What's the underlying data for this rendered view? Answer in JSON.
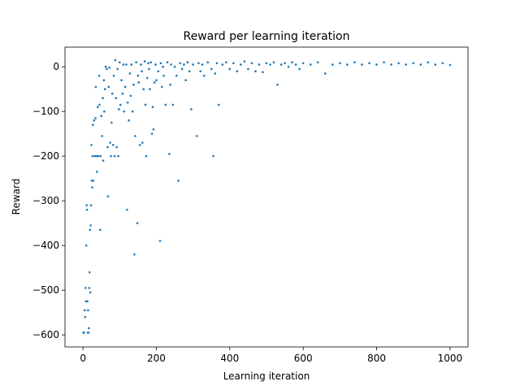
{
  "chart_data": {
    "type": "scatter",
    "title": "Reward per learning iteration",
    "x_label": "Learning iteration",
    "y_label": "Reward",
    "color": "#1f77b4",
    "xlim": [
      -49,
      1049
    ],
    "ylim": [
      -627,
      44
    ],
    "xticks": [
      0,
      200,
      400,
      600,
      800,
      1000
    ],
    "yticks": [
      {
        "value": -600,
        "label": "−600"
      },
      {
        "value": -500,
        "label": "−500"
      },
      {
        "value": -400,
        "label": "−400"
      },
      {
        "value": -300,
        "label": "−300"
      },
      {
        "value": -200,
        "label": "−200"
      },
      {
        "value": -100,
        "label": "−100"
      },
      0
    ],
    "x": [
      1,
      3,
      5,
      6,
      7,
      8,
      9,
      10,
      11,
      12,
      13,
      14,
      15,
      16,
      17,
      18,
      19,
      20,
      21,
      22,
      23,
      24,
      25,
      26,
      27,
      28,
      30,
      32,
      34,
      35,
      37,
      38,
      40,
      42,
      44,
      45,
      47,
      48,
      50,
      52,
      54,
      55,
      57,
      58,
      60,
      62,
      65,
      67,
      68,
      70,
      72,
      74,
      76,
      78,
      80,
      82,
      84,
      86,
      88,
      90,
      92,
      94,
      96,
      98,
      100,
      102,
      105,
      108,
      110,
      112,
      115,
      118,
      120,
      122,
      125,
      128,
      130,
      132,
      135,
      138,
      140,
      142,
      145,
      148,
      150,
      152,
      155,
      158,
      160,
      162,
      165,
      168,
      170,
      172,
      175,
      178,
      180,
      182,
      185,
      188,
      190,
      192,
      195,
      198,
      200,
      205,
      210,
      212,
      215,
      218,
      220,
      225,
      230,
      235,
      238,
      240,
      245,
      250,
      255,
      260,
      265,
      270,
      275,
      280,
      285,
      290,
      295,
      300,
      310,
      315,
      320,
      325,
      330,
      340,
      350,
      355,
      360,
      365,
      370,
      380,
      390,
      400,
      410,
      420,
      430,
      440,
      450,
      460,
      470,
      480,
      490,
      500,
      510,
      520,
      530,
      540,
      550,
      560,
      570,
      580,
      590,
      600,
      620,
      640,
      660,
      680,
      700,
      720,
      740,
      760,
      780,
      800,
      820,
      840,
      860,
      880,
      900,
      920,
      940,
      960,
      980,
      1000
    ],
    "values": [
      -595,
      -595,
      -545,
      -560,
      -495,
      -525,
      -400,
      -310,
      -320,
      -525,
      -595,
      -545,
      -595,
      -585,
      -495,
      -460,
      -365,
      -505,
      -355,
      -310,
      -175,
      -255,
      -270,
      -200,
      -130,
      -255,
      -120,
      -200,
      -115,
      -45,
      -200,
      -235,
      -90,
      -200,
      -20,
      -85,
      -365,
      -200,
      -110,
      -155,
      -70,
      -210,
      -30,
      -100,
      -50,
      0,
      -5,
      -180,
      -290,
      -45,
      -2,
      -170,
      -200,
      -125,
      -60,
      -175,
      -20,
      -200,
      15,
      -70,
      -180,
      -5,
      -200,
      -95,
      10,
      -85,
      -30,
      -60,
      5,
      -100,
      -45,
      5,
      -320,
      -80,
      -120,
      -15,
      -65,
      5,
      -100,
      -40,
      -420,
      -155,
      10,
      -350,
      -20,
      -35,
      -175,
      5,
      -10,
      -170,
      -50,
      12,
      -85,
      -200,
      -25,
      8,
      -5,
      -50,
      10,
      -150,
      -90,
      -140,
      -35,
      5,
      -30,
      -10,
      -390,
      8,
      -45,
      0,
      -20,
      -85,
      10,
      -195,
      -40,
      5,
      -85,
      0,
      -20,
      -255,
      8,
      -5,
      5,
      -30,
      10,
      -10,
      -95,
      5,
      -155,
      8,
      -10,
      5,
      -20,
      10,
      -5,
      -200,
      -15,
      8,
      -85,
      5,
      10,
      -5,
      8,
      -10,
      5,
      12,
      -5,
      8,
      -10,
      5,
      -12,
      8,
      5,
      10,
      -40,
      5,
      8,
      0,
      10,
      5,
      -5,
      8,
      5,
      10,
      -15,
      5,
      8,
      5,
      10,
      5,
      8,
      5,
      10,
      5,
      8,
      5,
      8,
      5,
      10,
      5,
      8,
      4
    ]
  }
}
